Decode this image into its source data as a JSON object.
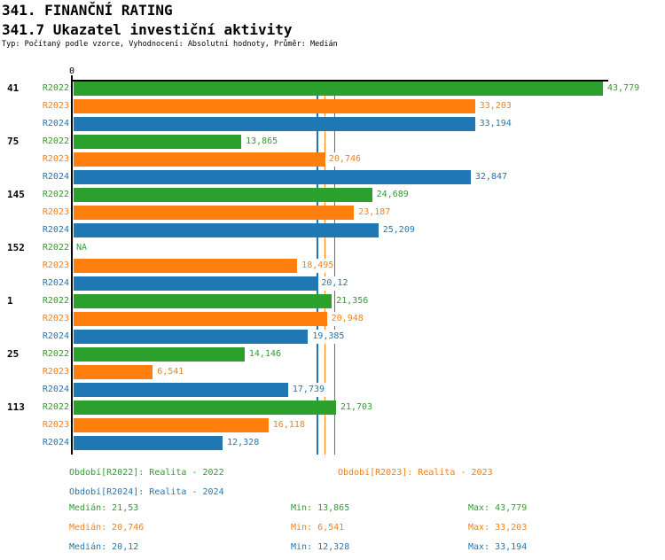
{
  "header": {
    "title": "341. FINANČNÍ RATING",
    "subtitle": "341.7 Ukazatel investiční aktivity",
    "meta": "Typ: Počítaný podle vzorce, Vyhodnocení: Absolutní hodnoty, Průměr: Medián"
  },
  "colors": {
    "R2022": "#2ca02c",
    "R2023": "#ff7f0e",
    "R2024": "#1f77b4",
    "axis": "#000000",
    "background": "#ffffff"
  },
  "chart_data": {
    "type": "bar",
    "orientation": "horizontal",
    "title": "341.7 Ukazatel investiční aktivity",
    "xmin_label": "0",
    "xmax": 44,
    "grid": false,
    "categories": [
      "41",
      "75",
      "145",
      "152",
      "1",
      "25",
      "113"
    ],
    "series": [
      {
        "name": "R2022",
        "values": [
          43.779,
          13.865,
          24.689,
          null,
          21.356,
          14.146,
          21.703
        ],
        "labels": [
          "43,779",
          "13,865",
          "24,689",
          "NA",
          "21,356",
          "14,146",
          "21,703"
        ]
      },
      {
        "name": "R2023",
        "values": [
          33.203,
          20.746,
          23.187,
          18.495,
          20.948,
          6.541,
          16.118
        ],
        "labels": [
          "33,203",
          "20,746",
          "23,187",
          "18,495",
          "20,948",
          "6,541",
          "16,118"
        ]
      },
      {
        "name": "R2024",
        "values": [
          33.194,
          32.847,
          25.209,
          20.12,
          19.385,
          17.739,
          12.328
        ],
        "labels": [
          "33,194",
          "32,847",
          "25,209",
          "20,12",
          "19,385",
          "17,739",
          "12,328"
        ]
      }
    ],
    "median_lines": [
      {
        "series": "R2022",
        "value": 21.53
      },
      {
        "series": "R2023",
        "value": 20.746
      },
      {
        "series": "R2024",
        "value": 20.12
      }
    ]
  },
  "legend": {
    "periods": [
      {
        "series": "R2022",
        "text": "Období[R2022]: Realita - 2022"
      },
      {
        "series": "R2023",
        "text": "Období[R2023]: Realita - 2023"
      },
      {
        "series": "R2024",
        "text": "Období[R2024]: Realita - 2024"
      }
    ],
    "stats": [
      {
        "series": "R2022",
        "median": "Medián: 21,53",
        "min": "Min: 13,865",
        "max": "Max: 43,779"
      },
      {
        "series": "R2023",
        "median": "Medián: 20,746",
        "min": "Min: 6,541",
        "max": "Max: 33,203"
      },
      {
        "series": "R2024",
        "median": "Medián: 20,12",
        "min": "Min: 12,328",
        "max": "Max: 33,194"
      }
    ]
  }
}
